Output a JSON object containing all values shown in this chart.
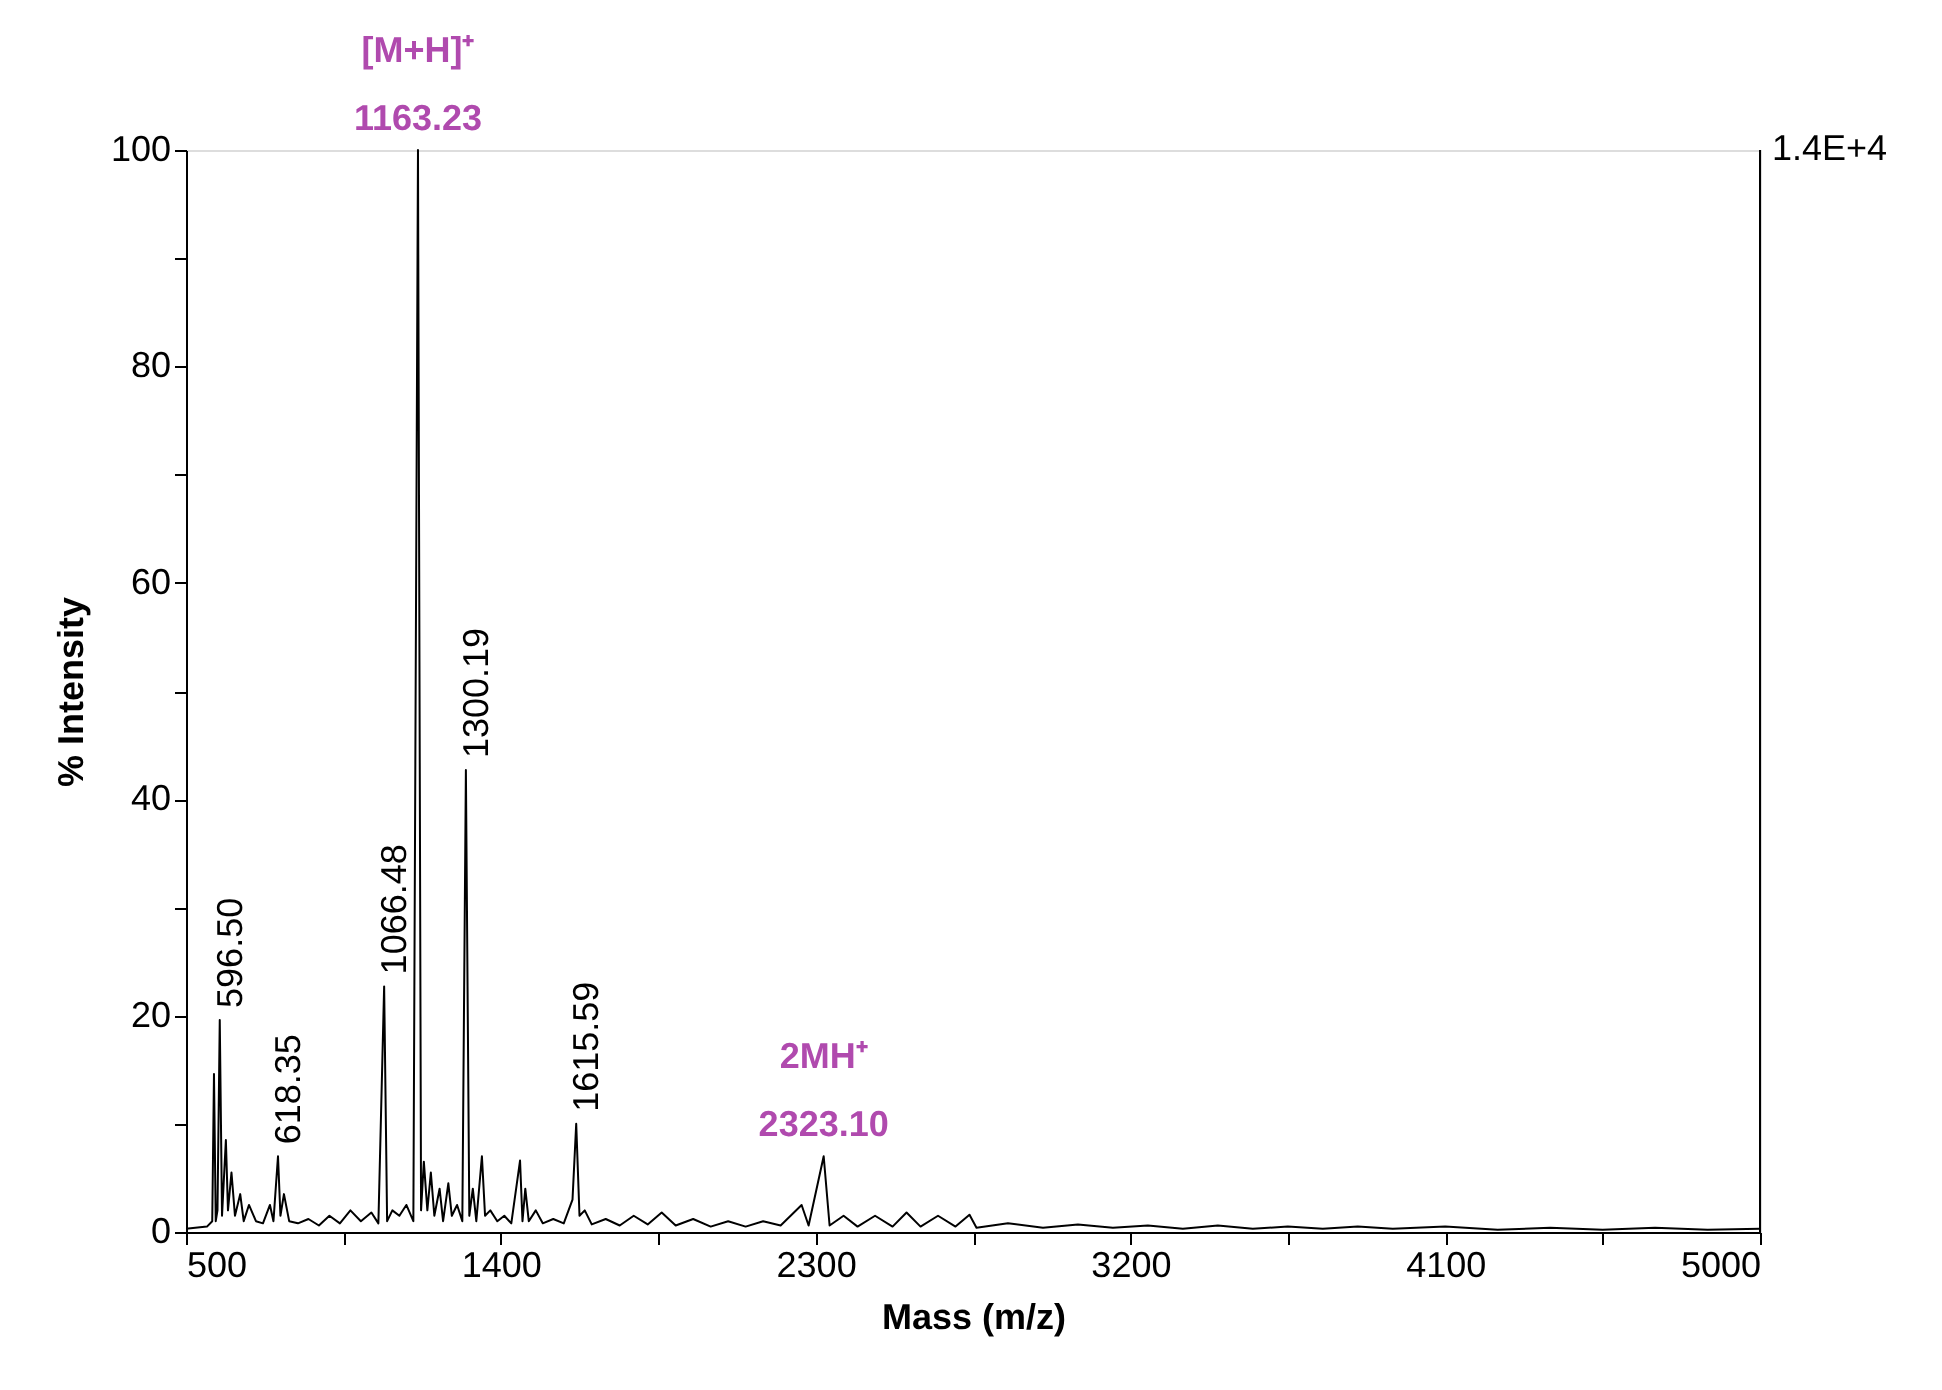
{
  "chart_data": {
    "type": "line",
    "xlabel": "Mass (m/z)",
    "ylabel": "% Intensity",
    "xlim": [
      500,
      5000
    ],
    "xticks": [
      500,
      {
        "value": 950,
        "label": null
      },
      1400,
      {
        "value": 1850,
        "label": null
      },
      2300,
      {
        "value": 2750,
        "label": null
      },
      3200,
      {
        "value": 3650,
        "label": null
      },
      4100,
      {
        "value": 4550,
        "label": null
      },
      5000
    ],
    "ylim": [
      0,
      100
    ],
    "yticks": [
      0,
      {
        "value": 10,
        "label": null
      },
      20,
      {
        "value": 30,
        "label": null
      },
      40,
      {
        "value": 50,
        "label": null
      },
      60,
      {
        "value": 70,
        "label": null
      },
      80,
      {
        "value": 90,
        "label": null
      },
      100
    ],
    "x": [
      500,
      560,
      575,
      580,
      585,
      590,
      596.5,
      603,
      614,
      620,
      630,
      640,
      655,
      665,
      680,
      700,
      720,
      740,
      750,
      763,
      770,
      780,
      795,
      820,
      850,
      880,
      910,
      940,
      970,
      1000,
      1030,
      1050,
      1066.48,
      1075,
      1090,
      1110,
      1130,
      1150,
      1163.23,
      1172,
      1180,
      1190,
      1200,
      1210,
      1225,
      1235,
      1250,
      1260,
      1275,
      1290,
      1300.19,
      1310,
      1320,
      1330,
      1346,
      1355,
      1370,
      1390,
      1410,
      1430,
      1455,
      1462,
      1470,
      1480,
      1500,
      1520,
      1550,
      1580,
      1605,
      1615.59,
      1625,
      1640,
      1660,
      1700,
      1740,
      1780,
      1820,
      1860,
      1900,
      1950,
      2000,
      2050,
      2100,
      2150,
      2200,
      2260,
      2280,
      2323.1,
      2340,
      2380,
      2420,
      2470,
      2520,
      2560,
      2600,
      2650,
      2700,
      2740,
      2760,
      2850,
      2950,
      3050,
      3150,
      3250,
      3350,
      3450,
      3550,
      3650,
      3750,
      3850,
      3950,
      4100,
      4250,
      4400,
      4550,
      4700,
      4850,
      5000
    ],
    "series": [
      {
        "color": "#000000",
        "values": [
          0.3,
          0.5,
          1,
          14.6,
          1,
          2,
          19.6,
          1.5,
          8.5,
          2,
          5.5,
          1.5,
          3.5,
          1,
          2.5,
          1,
          0.8,
          2.5,
          1,
          7.0,
          1.5,
          3.5,
          1,
          0.8,
          1.2,
          0.6,
          1.5,
          0.8,
          2,
          1,
          1.8,
          0.8,
          22.7,
          1,
          2,
          1.5,
          2.5,
          1,
          100,
          2,
          6.5,
          2,
          5.5,
          1.5,
          4,
          1,
          4.5,
          1.5,
          2.5,
          1,
          42.7,
          1.5,
          4,
          1,
          7,
          1.5,
          2,
          1,
          1.5,
          0.8,
          6.6,
          1,
          4,
          1,
          2,
          0.8,
          1.2,
          0.8,
          3,
          10,
          1.5,
          2,
          0.7,
          1.2,
          0.6,
          1.5,
          0.7,
          1.8,
          0.6,
          1.2,
          0.5,
          1,
          0.5,
          1,
          0.6,
          2.5,
          0.6,
          7,
          0.6,
          1.5,
          0.5,
          1.5,
          0.5,
          1.8,
          0.5,
          1.5,
          0.5,
          1.6,
          0.4,
          0.8,
          0.4,
          0.7,
          0.4,
          0.6,
          0.3,
          0.6,
          0.3,
          0.5,
          0.3,
          0.5,
          0.3,
          0.5,
          0.2,
          0.4,
          0.2,
          0.4,
          0.2,
          0.3
        ]
      }
    ],
    "annotations": [
      {
        "text": "596.50",
        "x": 596.5,
        "y": 19.6
      },
      {
        "text": "618.35",
        "x": 763,
        "y": 7.0
      },
      {
        "text": "1066.48",
        "x": 1066.48,
        "y": 22.7
      },
      {
        "text": "[M+H]⁺\n1163.23",
        "x": 1163.23,
        "y": 100
      },
      {
        "text": "1300.19",
        "x": 1300.19,
        "y": 42.7
      },
      {
        "text": "1615.59",
        "x": 1615.59,
        "y": 10
      },
      {
        "text": "2MH⁺\n2323.10",
        "x": 2323.1,
        "y": 7.0
      },
      "1.4E+4"
    ]
  }
}
